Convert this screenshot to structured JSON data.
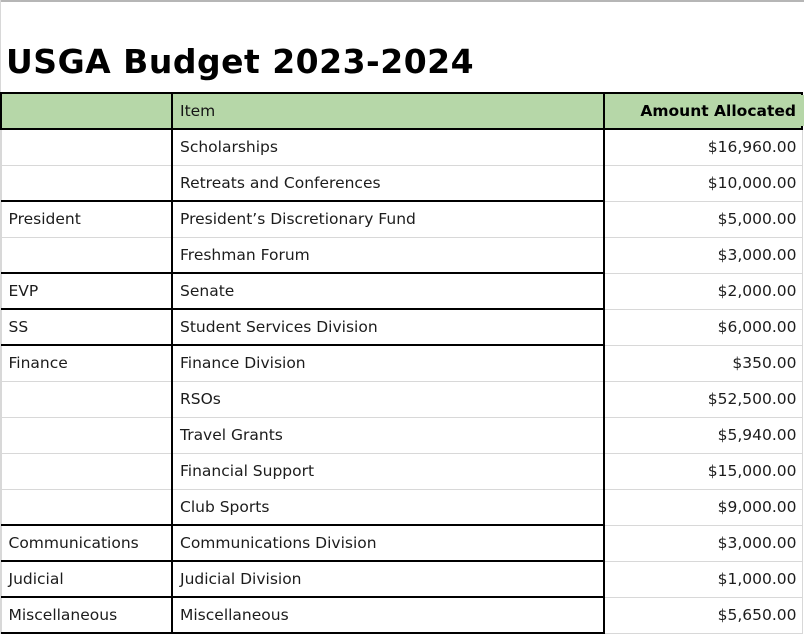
{
  "title": "USGA Budget 2023-2024",
  "table": {
    "headers": {
      "category": "",
      "item": "Item",
      "amount": "Amount Allocated"
    },
    "rows": [
      {
        "category": "",
        "item": "Scholarships",
        "amount": "$16,960.00",
        "section_start": false
      },
      {
        "category": "",
        "item": "Retreats and Conferences",
        "amount": "$10,000.00",
        "section_start": false
      },
      {
        "category": "President",
        "item": "President’s Discretionary Fund",
        "amount": "$5,000.00",
        "section_start": true
      },
      {
        "category": "",
        "item": "Freshman Forum",
        "amount": "$3,000.00",
        "section_start": false
      },
      {
        "category": "EVP",
        "item": "Senate",
        "amount": "$2,000.00",
        "section_start": true
      },
      {
        "category": "SS",
        "item": "Student Services Division",
        "amount": "$6,000.00",
        "section_start": true
      },
      {
        "category": "Finance",
        "item": "Finance Division",
        "amount": "$350.00",
        "section_start": true
      },
      {
        "category": "",
        "item": "RSOs",
        "amount": "$52,500.00",
        "section_start": false
      },
      {
        "category": "",
        "item": "Travel Grants",
        "amount": "$5,940.00",
        "section_start": false
      },
      {
        "category": "",
        "item": "Financial Support",
        "amount": "$15,000.00",
        "section_start": false
      },
      {
        "category": "",
        "item": "Club Sports",
        "amount": "$9,000.00",
        "section_start": false
      },
      {
        "category": "Communications",
        "item": "Communications Division",
        "amount": "$3,000.00",
        "section_start": true
      },
      {
        "category": "Judicial",
        "item": "Judicial Division",
        "amount": "$1,000.00",
        "section_start": true
      },
      {
        "category": "Miscellaneous",
        "item": "Miscellaneous",
        "amount": "$5,650.00",
        "section_start": true
      }
    ],
    "colors": {
      "header_bg": "#b6d7a8",
      "strong_border": "#000000",
      "gridline": "#d8d8d8"
    }
  }
}
